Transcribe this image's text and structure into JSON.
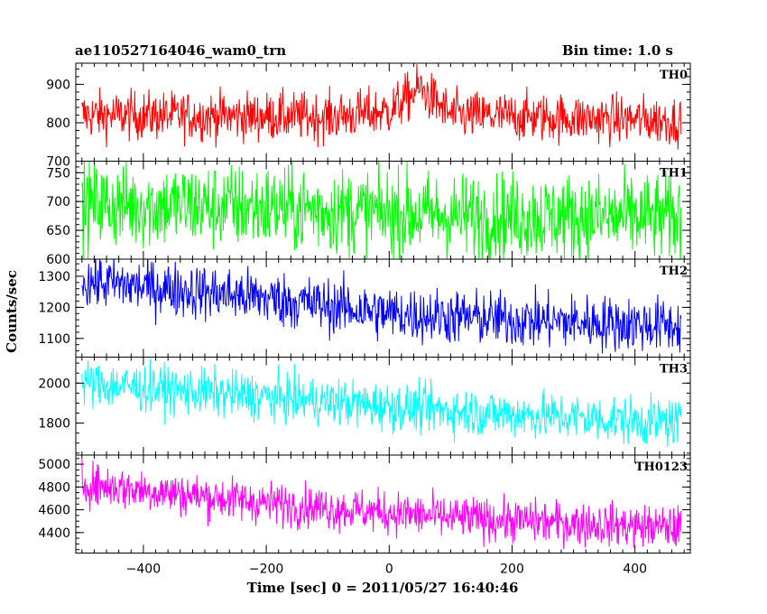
{
  "chart_data": {
    "type": "line",
    "title_left": "ae110527164046_wam0_trn",
    "title_right": "Bin time: 1.0 s",
    "xlabel": "Time [sec] 0 = 2011/05/27 16:40:46",
    "ylabel": "Counts/sec",
    "xlim": [
      -510,
      490
    ],
    "x_data_range": [
      -500,
      475
    ],
    "xticks": [
      -400,
      -200,
      0,
      200,
      400
    ],
    "grid": false,
    "panels": [
      {
        "name": "TH0",
        "color": "#ff0000",
        "ylim": [
          700,
          955
        ],
        "yticks": [
          700,
          800,
          900
        ],
        "minor_step": 20,
        "trend": [
          [
            -500,
            820
          ],
          [
            -100,
            815
          ],
          [
            0,
            830
          ],
          [
            50,
            890
          ],
          [
            100,
            820
          ],
          [
            475,
            805
          ]
        ],
        "noise": 32
      },
      {
        "name": "TH1",
        "color": "#00ff00",
        "ylim": [
          600,
          770
        ],
        "yticks": [
          600,
          650,
          700,
          750
        ],
        "minor_step": 10,
        "trend": [
          [
            -500,
            695
          ],
          [
            -200,
            690
          ],
          [
            100,
            675
          ],
          [
            475,
            672
          ]
        ],
        "noise": 38
      },
      {
        "name": "TH2",
        "color": "#0000ff",
        "ylim": [
          1040,
          1355
        ],
        "yticks": [
          1100,
          1200,
          1300
        ],
        "minor_step": 20,
        "trend": [
          [
            -500,
            1285
          ],
          [
            -200,
            1230
          ],
          [
            0,
            1180
          ],
          [
            200,
            1160
          ],
          [
            475,
            1140
          ]
        ],
        "noise": 45
      },
      {
        "name": "TH3",
        "color": "#00ffff",
        "ylim": [
          1640,
          2130
        ],
        "yticks": [
          1800,
          2000
        ],
        "minor_step": 50,
        "trend": [
          [
            -500,
            2000
          ],
          [
            -200,
            1930
          ],
          [
            100,
            1860
          ],
          [
            475,
            1800
          ]
        ],
        "noise": 60
      },
      {
        "name": "TH0123",
        "color": "#ff00ff",
        "ylim": [
          4220,
          5080
        ],
        "yticks": [
          4400,
          4600,
          4800,
          5000
        ],
        "minor_step": 50,
        "trend": [
          [
            -500,
            4830
          ],
          [
            -200,
            4660
          ],
          [
            100,
            4530
          ],
          [
            475,
            4440
          ]
        ],
        "noise": 95
      }
    ]
  }
}
